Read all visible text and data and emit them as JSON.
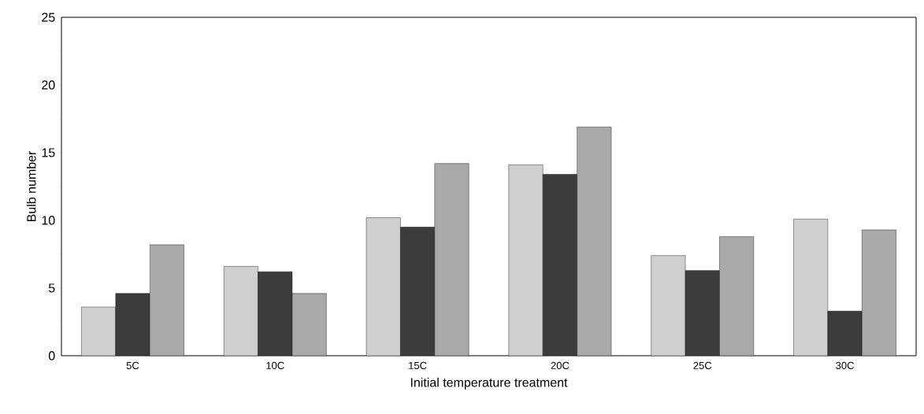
{
  "chart_data": {
    "type": "bar",
    "xlabel": "Initial temperature treatment",
    "ylabel": "Bulb number",
    "categories": [
      "5C",
      "10C",
      "15C",
      "20C",
      "25C",
      "30C"
    ],
    "series": [
      {
        "color": "#cfcfcf",
        "values": [
          3.6,
          6.6,
          10.2,
          14.1,
          7.4,
          10.1
        ]
      },
      {
        "color": "#3c3c3c",
        "values": [
          4.6,
          6.2,
          9.5,
          13.4,
          6.3,
          3.3
        ]
      },
      {
        "color": "#a9a9a9",
        "values": [
          8.2,
          4.6,
          14.2,
          16.9,
          8.8,
          9.3
        ]
      }
    ],
    "ylim": [
      0,
      25
    ],
    "yticks": [
      0,
      5,
      10,
      15,
      20,
      25
    ]
  }
}
